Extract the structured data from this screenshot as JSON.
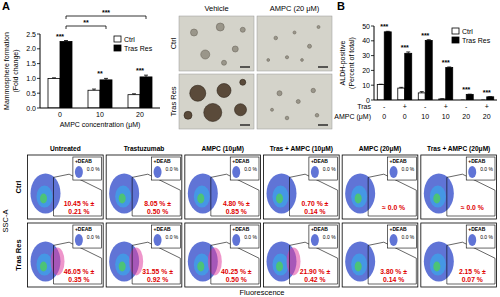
{
  "chart_data": [
    {
      "type": "bar",
      "label": "A",
      "ylabel": [
        "Mammosphere formation",
        "(Fold change)"
      ],
      "xlabel": "AMPC concentration (μM)",
      "categories": [
        0,
        10,
        20
      ],
      "series": [
        {
          "name": "Ctrl",
          "color": "#ffffff",
          "values": [
            1.0,
            0.6,
            0.45
          ],
          "errors": [
            0.02,
            0.04,
            0.03
          ]
        },
        {
          "name": "Tras Res",
          "color": "#000000",
          "values": [
            2.25,
            0.95,
            1.05
          ],
          "errors": [
            0.03,
            0.05,
            0.06
          ]
        }
      ],
      "ylim": [
        0,
        2.5
      ],
      "yticks": [
        {
          "value": 0,
          "label": "0.0"
        },
        {
          "value": 0.5,
          "label": "0.5"
        },
        {
          "value": 1,
          "label": "1.0"
        },
        {
          "value": 1.5,
          "label": "1.5"
        },
        {
          "value": 2,
          "label": "2.0"
        },
        {
          "value": 2.5,
          "label": "2.5"
        }
      ],
      "legend": "top-right",
      "significance": [
        "***",
        "**",
        "***"
      ],
      "brackets": [
        {
          "text": "**",
          "from": 0,
          "to": 1
        },
        {
          "text": "***",
          "from": 0,
          "to": 2
        }
      ]
    },
    {
      "type": "bar",
      "label": "B",
      "ylabel": [
        "ALDH-positive",
        "(Percent of total)"
      ],
      "x_rows": [
        {
          "label": "Tras",
          "values": [
            "-",
            "+",
            "-",
            "+",
            "-",
            "+"
          ]
        },
        {
          "label": "AMPC (μM)",
          "values": [
            0,
            0,
            10,
            10,
            20,
            20
          ]
        }
      ],
      "series": [
        {
          "name": "Ctrl",
          "color": "#ffffff",
          "values": [
            10.45,
            8.05,
            4.8,
            0.7,
            0,
            0
          ],
          "errors": [
            0.21,
            0.5,
            0.85,
            0.14,
            0,
            0
          ]
        },
        {
          "name": "Tras Res",
          "color": "#000000",
          "values": [
            46.05,
            31.55,
            40.25,
            21.9,
            3.8,
            2.15
          ],
          "errors": [
            0.35,
            0.92,
            0.5,
            0.42,
            0.14,
            0.07
          ]
        }
      ],
      "ylim": [
        0,
        50
      ],
      "yticks": [
        0,
        10,
        20,
        30,
        40,
        50
      ],
      "legend": "top-right",
      "significance": [
        "***",
        "***",
        "***",
        "***",
        "***",
        "***"
      ]
    }
  ],
  "images": {
    "column_labels": [
      "Vehicle",
      "AMPC (20 μM)"
    ],
    "row_labels": [
      "Ctrl",
      "Tras Res"
    ]
  },
  "flow": {
    "ylabel": "SSC-A",
    "xlabel": "Fluorescence",
    "columns": [
      "Untreated",
      "Trastuzumab",
      "AMPC (10μM)",
      "Tras + AMPC (10μM)",
      "AMPC (20μM)",
      "Tras + AMPC (20μM)"
    ],
    "control_label": "+DEAB",
    "control_text": "0.0 %",
    "rows": [
      {
        "label": "Ctrl",
        "cells": [
          [
            "10.45 % ±",
            "0.21 %"
          ],
          [
            "8.05 % ±",
            "0.50 %"
          ],
          [
            "4.80 % ±",
            "0.85 %"
          ],
          [
            "0.70 % ±",
            "0.14 %"
          ],
          [
            "≈ 0.0 %"
          ],
          [
            "≈ 0.0 %"
          ]
        ]
      },
      {
        "label": "Tras Res",
        "cells": [
          [
            "46.05 % ±",
            "0.35 %"
          ],
          [
            "31.55 % ±",
            "0.92 %"
          ],
          [
            "40.25 % ±",
            "0.50 %"
          ],
          [
            "21.90 % ±",
            "0.42 %"
          ],
          [
            "3.80 % ±",
            "0.14 %"
          ],
          [
            "2.15 % ±",
            "0.07 %"
          ]
        ]
      }
    ]
  }
}
